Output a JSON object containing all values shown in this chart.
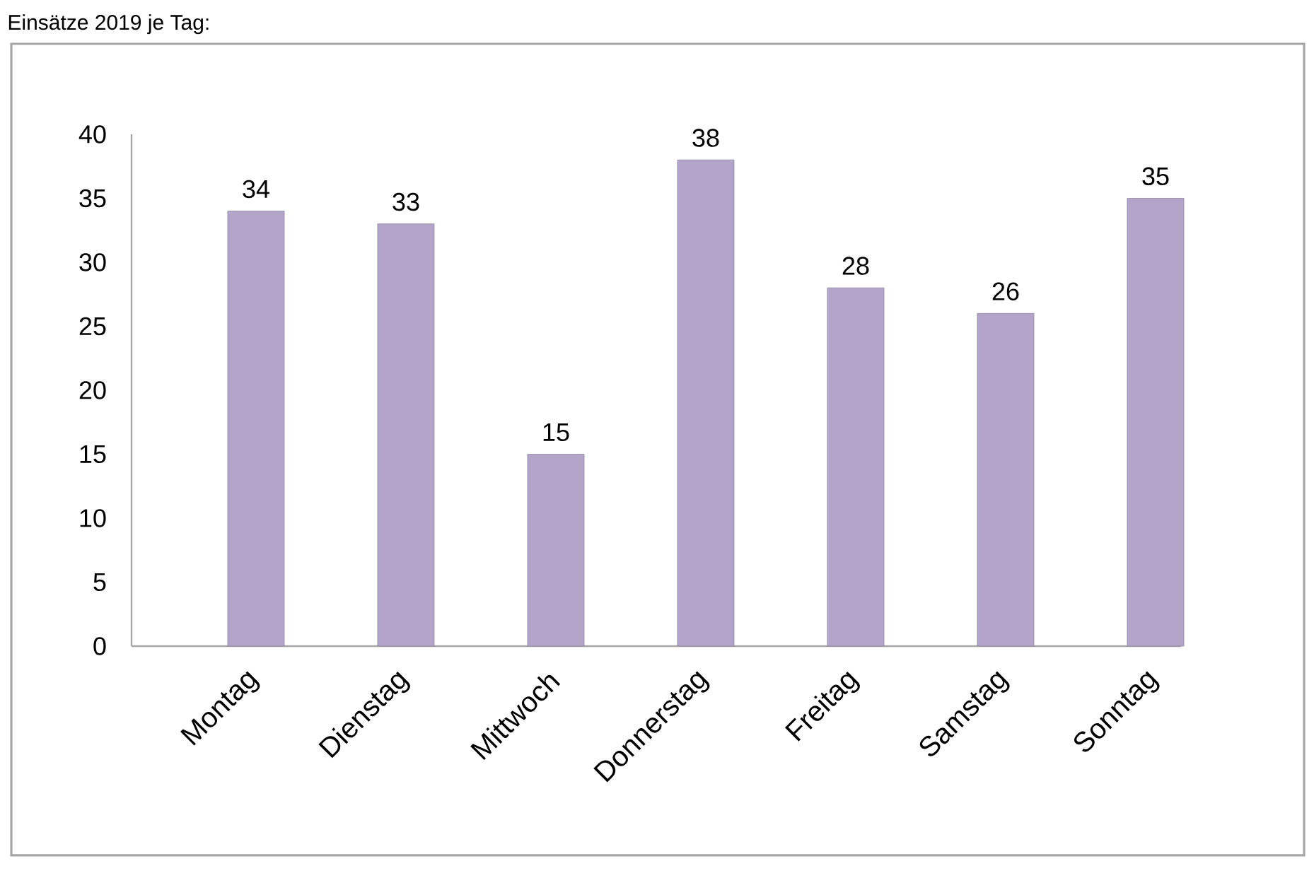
{
  "chart_data": {
    "type": "bar",
    "title": "Einsätze 2019 je Tag:",
    "categories": [
      "Montag",
      "Dienstag",
      "Mittwoch",
      "Donnerstag",
      "Freitag",
      "Samstag",
      "Sonntag"
    ],
    "values": [
      34,
      33,
      15,
      38,
      28,
      26,
      35
    ],
    "color": "#b3a5c9",
    "ylim": [
      0,
      40
    ],
    "yticks": [
      0,
      5,
      10,
      15,
      20,
      25,
      30,
      35,
      40
    ],
    "data_labels": true
  }
}
